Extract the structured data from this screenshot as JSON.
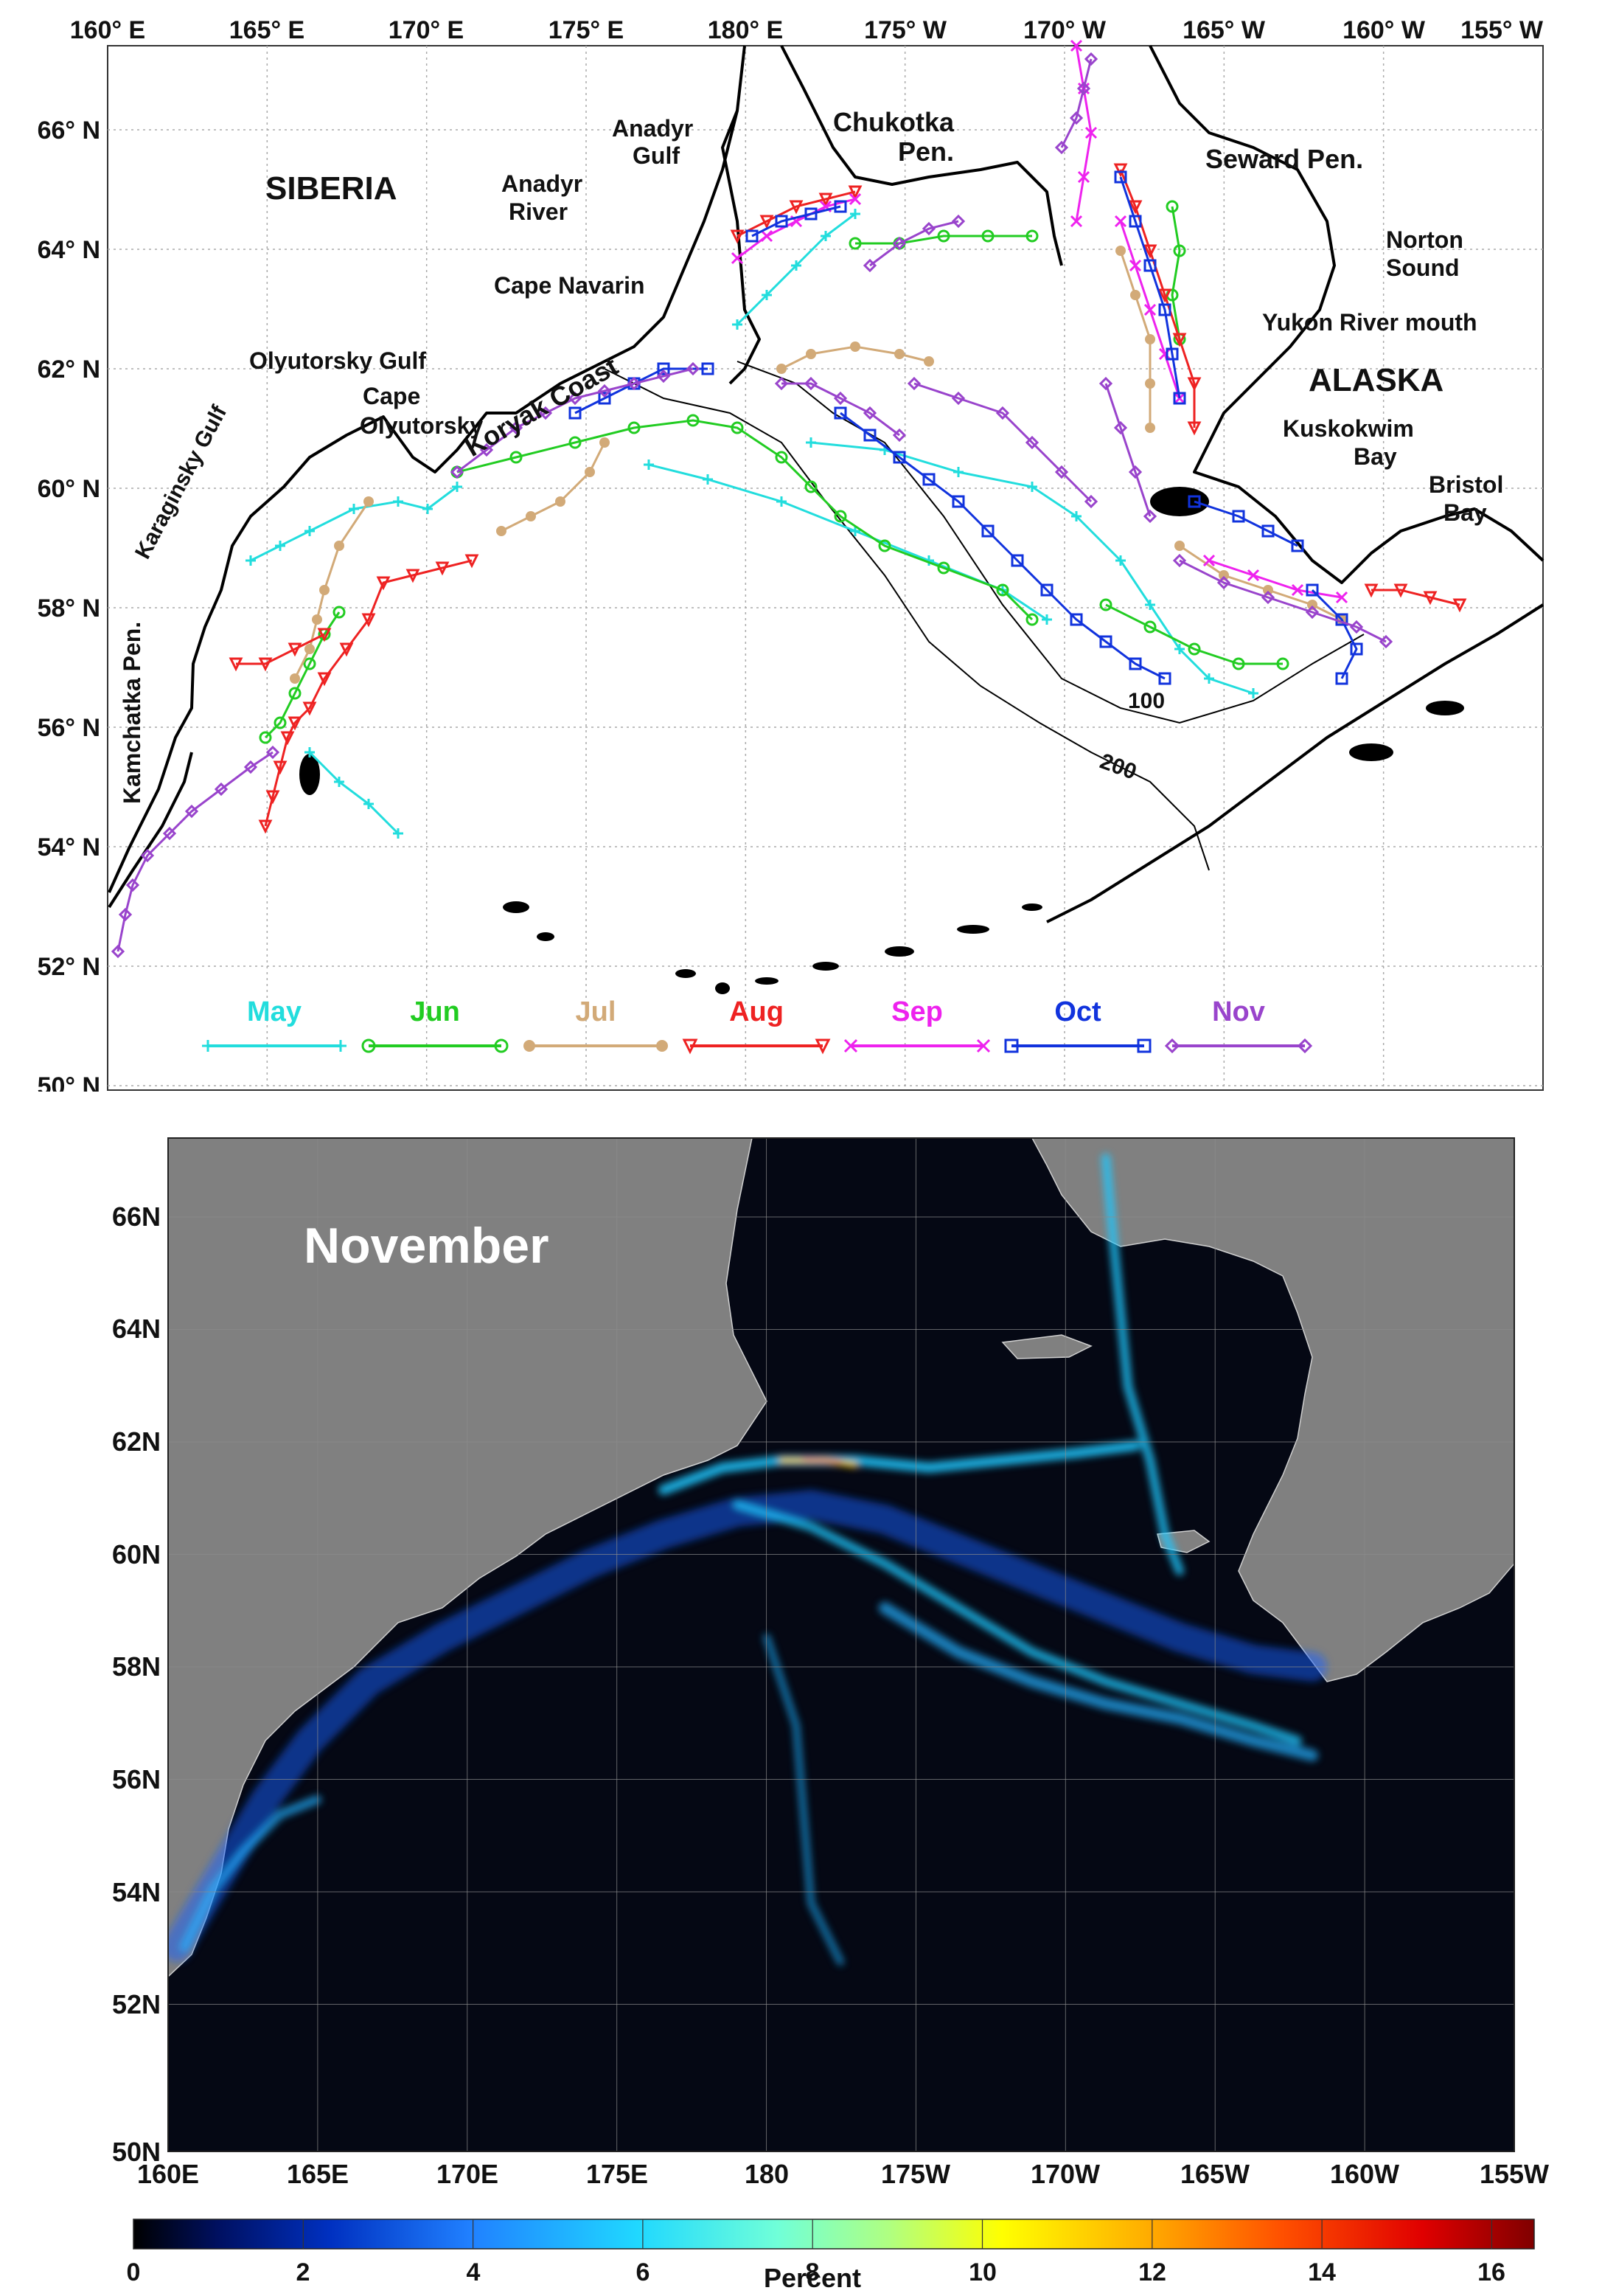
{
  "top_map": {
    "lon_ticks": [
      "160° E",
      "165° E",
      "170° E",
      "175° E",
      "180° E",
      "175° W",
      "170° W",
      "165° W",
      "160° W",
      "155° W"
    ],
    "lat_ticks": [
      "66° N",
      "64° N",
      "62° N",
      "60° N",
      "58° N",
      "56° N",
      "54° N",
      "52° N",
      "50° N"
    ],
    "labels": {
      "siberia": "SIBERIA",
      "alaska": "ALASKA",
      "anadyr_gulf_1": "Anadyr",
      "anadyr_gulf_2": "Gulf",
      "anadyr_river_1": "Anadyr",
      "anadyr_river_2": "River",
      "chukotka_1": "Chukotka",
      "chukotka_2": "Pen.",
      "seward": "Seward Pen.",
      "norton_1": "Norton",
      "norton_2": "Sound",
      "yukon": "Yukon River mouth",
      "cape_navarin": "Cape Navarin",
      "koryak": "Koryak Coast",
      "olyutorsky_gulf": "Olyutorsky Gulf",
      "cape_olyutorsky_1": "Cape",
      "cape_olyutorsky_2": "Olyutorsky",
      "karaginsky": "Karaginsky Gulf",
      "kamchatka": "Kamchatka Pen.",
      "kuskokwim_1": "Kuskokwim",
      "kuskokwim_2": "Bay",
      "bristol_1": "Bristol",
      "bristol_2": "Bay",
      "iso_100": "100",
      "iso_200": "200"
    },
    "months": [
      {
        "name": "May",
        "color": "#22dddd",
        "marker": "plus"
      },
      {
        "name": "Jun",
        "color": "#22cc22",
        "marker": "circle"
      },
      {
        "name": "Jul",
        "color": "#d2aa78",
        "marker": "dot"
      },
      {
        "name": "Aug",
        "color": "#ee2222",
        "marker": "triangle"
      },
      {
        "name": "Sep",
        "color": "#ee22ee",
        "marker": "cross"
      },
      {
        "name": "Oct",
        "color": "#1133dd",
        "marker": "square"
      },
      {
        "name": "Nov",
        "color": "#9944cc",
        "marker": "diamond"
      }
    ]
  },
  "bottom_map": {
    "title": "November",
    "lon_ticks": [
      "160E",
      "165E",
      "170E",
      "175E",
      "180",
      "175W",
      "170W",
      "165W",
      "160W",
      "155W"
    ],
    "lat_ticks": [
      "66N",
      "64N",
      "62N",
      "60N",
      "58N",
      "56N",
      "54N",
      "52N",
      "50N"
    ],
    "colorbar": {
      "ticks": [
        "0",
        "2",
        "4",
        "6",
        "8",
        "10",
        "12",
        "14",
        "16"
      ],
      "label": "Percent",
      "range": [
        0,
        16.5
      ]
    }
  }
}
